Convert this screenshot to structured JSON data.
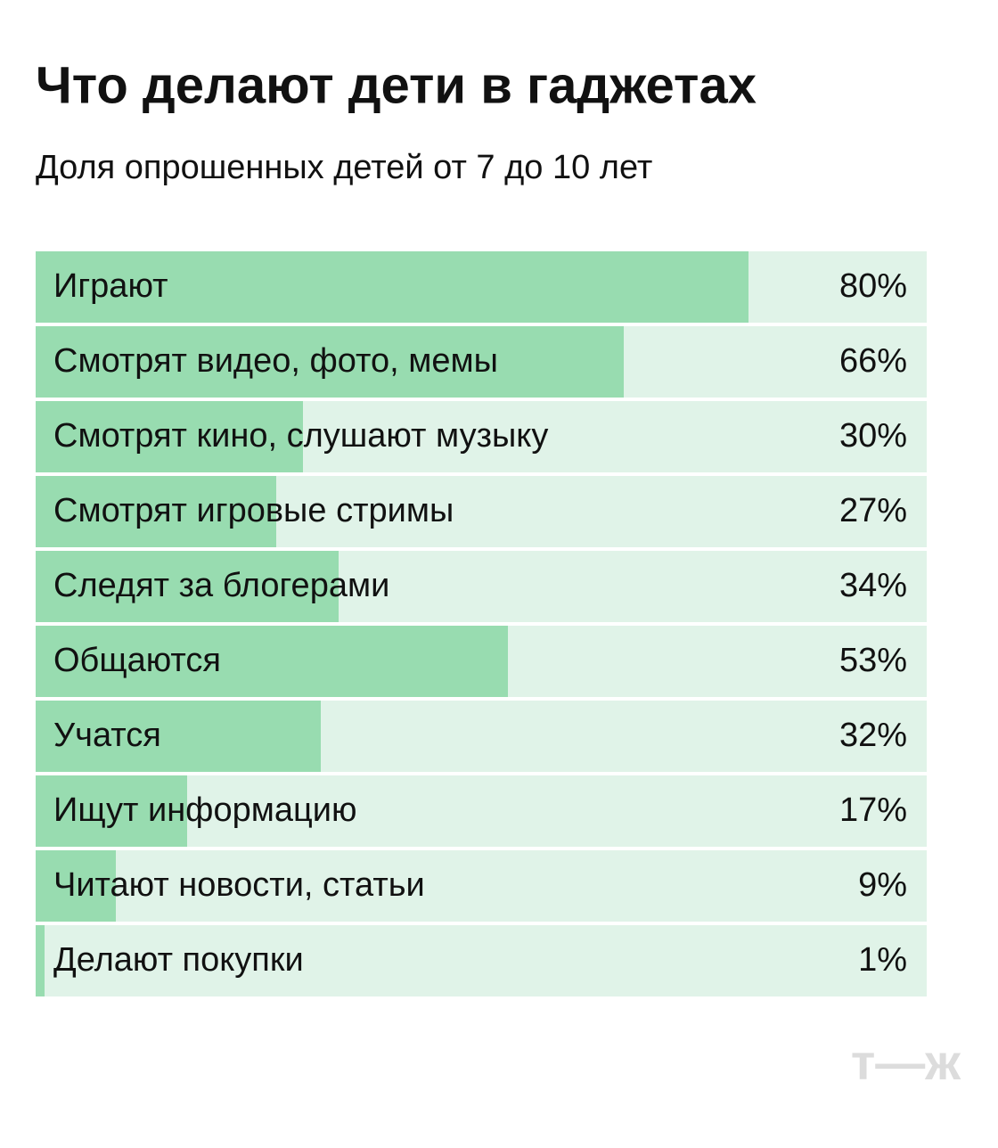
{
  "chart_data": {
    "type": "barh",
    "title": "Что делают дети в гаджетах",
    "subtitle": "Доля опрошенных детей от 7 до 10 лет",
    "categories": [
      "Играют",
      "Смотрят видео, фото, мемы",
      "Смотрят кино, слушают музыку",
      "Смотрят игровые стримы",
      "Следят за блогерами",
      "Общаются",
      "Учатся",
      "Ищут информацию",
      "Читают новости, статьи",
      "Делают покупки"
    ],
    "values": [
      80,
      66,
      30,
      27,
      34,
      53,
      32,
      17,
      9,
      1
    ],
    "value_labels": [
      "80%",
      "66%",
      "30%",
      "27%",
      "34%",
      "53%",
      "32%",
      "17%",
      "9%",
      "1%"
    ],
    "color": "#98dcb0",
    "track_color": "#e0f3e8",
    "xlim": [
      0,
      100
    ]
  },
  "logo": "т—ж"
}
